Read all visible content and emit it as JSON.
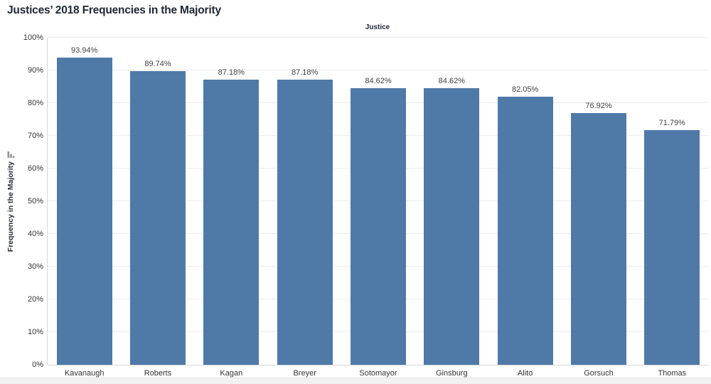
{
  "colors": {
    "bar": "#4f7aa8",
    "grid": "#ececec",
    "axis_line": "#d8d8d8",
    "text": "#333333",
    "value_text": "#424242",
    "title_text": "#1e2734",
    "scrollbar_track": "#f1f1f1"
  },
  "icons": {
    "y_axis_sort": "sort-descending-icon"
  },
  "chart_data": {
    "type": "bar",
    "title": "Justices’ 2018 Frequencies in the Majority",
    "column_header": "Justice",
    "ylabel": "Frequency in the Majority",
    "categories": [
      "Kavanaugh",
      "Roberts",
      "Kagan",
      "Breyer",
      "Sotomayor",
      "Ginsburg",
      "Alito",
      "Gorsuch",
      "Thomas"
    ],
    "values": [
      93.94,
      89.74,
      87.18,
      87.18,
      84.62,
      84.62,
      82.05,
      76.92,
      71.79
    ],
    "value_labels": [
      "93.94%",
      "89.74%",
      "87.18%",
      "87.18%",
      "84.62%",
      "84.62%",
      "82.05%",
      "76.92%",
      "71.79%"
    ],
    "ylim": [
      0,
      100
    ],
    "ytick_step": 10,
    "ytick_labels": [
      "0%",
      "10%",
      "20%",
      "30%",
      "40%",
      "50%",
      "60%",
      "70%",
      "80%",
      "90%",
      "100%"
    ],
    "grid": true,
    "legend": "none",
    "sort_order": "descending"
  }
}
